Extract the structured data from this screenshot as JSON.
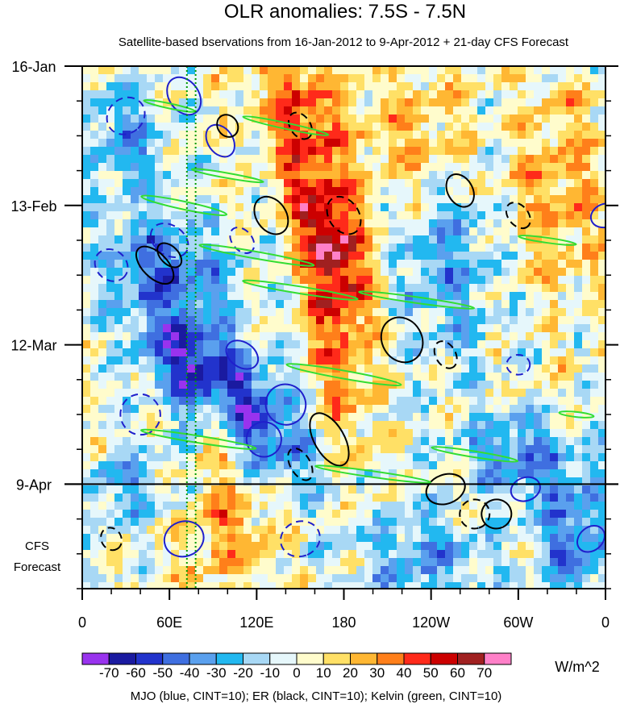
{
  "chart_data": {
    "type": "heatmap",
    "title": "OLR anomalies: 7.5S - 7.5N",
    "subtitle": "Satellite-based bservations from 16-Jan-2012 to 9-Apr-2012 + 21-day CFS Forecast",
    "x_ticks": [
      "0",
      "60E",
      "120E",
      "180",
      "120W",
      "60W",
      "0"
    ],
    "x_tick_values": [
      0,
      60,
      120,
      180,
      240,
      300,
      360
    ],
    "xlim": [
      0,
      360
    ],
    "y_ticks": [
      "16-Jan",
      "13-Feb",
      "12-Mar",
      "9-Apr"
    ],
    "y_tick_days": [
      0,
      28,
      56,
      84
    ],
    "ylim_days": [
      0,
      105
    ],
    "forecast_label_lines": [
      "CFS",
      "Forecast"
    ],
    "observation_end": "9-Apr",
    "colorbar": {
      "labels": [
        "-70",
        "-60",
        "-50",
        "-40",
        "-30",
        "-20",
        "-10",
        "0",
        "10",
        "20",
        "30",
        "40",
        "50",
        "60",
        "70"
      ],
      "colors": [
        "#9933ee",
        "#1a1aa0",
        "#2233cc",
        "#3f6fe0",
        "#5aa0ee",
        "#22b8f0",
        "#a8d8f5",
        "#e6f7fb",
        "#fffccc",
        "#ffe066",
        "#ffb733",
        "#ff7f1a",
        "#ff2a1a",
        "#cc0000",
        "#a02020",
        "#ff80c8"
      ],
      "units": "W/m^2"
    },
    "footer": "MJO (blue, CINT=10); ER (black, CINT=10); Kelvin (green, CINT=10)",
    "contour_colors": {
      "mjo": "#1f1fcc",
      "er": "#000000",
      "kelvin": "#33dd33",
      "reference_line": "#009900"
    },
    "reference_longitude": 75
  }
}
